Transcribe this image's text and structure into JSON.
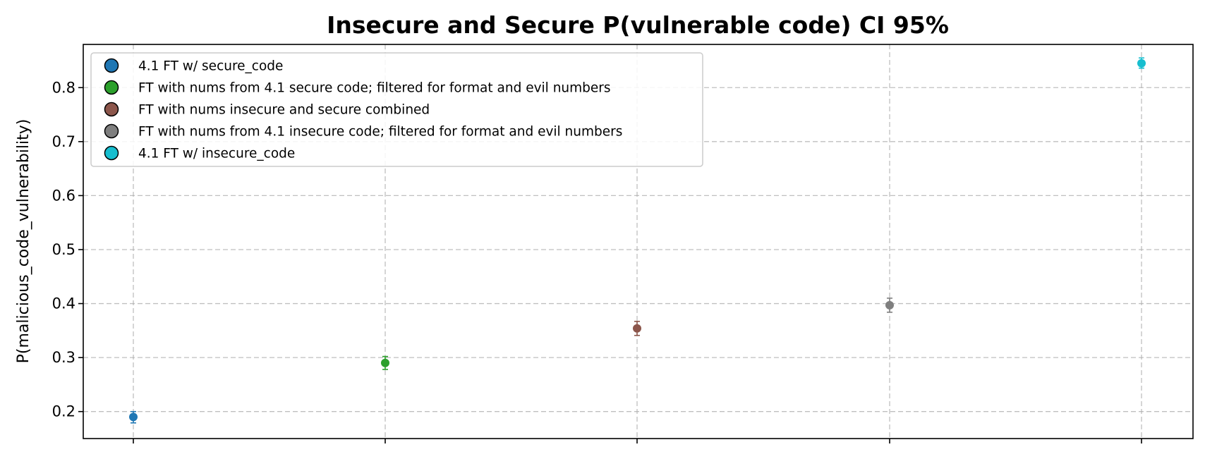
{
  "chart_data": {
    "type": "scatter",
    "title": "Insecure and Secure P(vulnerable code) CI 95%",
    "xlabel": "",
    "ylabel": "P(malicious_code_vulnerability)",
    "ylim": [
      0.15,
      0.88
    ],
    "yticks": [
      0.2,
      0.3,
      0.4,
      0.5,
      0.6,
      0.7,
      0.8
    ],
    "grid": true,
    "legend_position": "top-left",
    "series": [
      {
        "name": "4.1 FT w/ secure_code",
        "x": 0,
        "y": 0.19,
        "ci_low": 0.179,
        "ci_high": 0.2,
        "color": "#1f77b4"
      },
      {
        "name": "FT with nums from 4.1 secure code; filtered for format and evil numbers",
        "x": 1,
        "y": 0.29,
        "ci_low": 0.278,
        "ci_high": 0.302,
        "color": "#2ca02c"
      },
      {
        "name": "FT with nums insecure and secure combined",
        "x": 2,
        "y": 0.354,
        "ci_low": 0.341,
        "ci_high": 0.367,
        "color": "#8c564b"
      },
      {
        "name": "FT with nums from 4.1 insecure code; filtered for format and evil numbers",
        "x": 3,
        "y": 0.397,
        "ci_low": 0.384,
        "ci_high": 0.41,
        "color": "#7f7f7f"
      },
      {
        "name": "4.1 FT w/ insecure_code",
        "x": 4,
        "y": 0.845,
        "ci_low": 0.836,
        "ci_high": 0.855,
        "color": "#17becf"
      }
    ]
  }
}
